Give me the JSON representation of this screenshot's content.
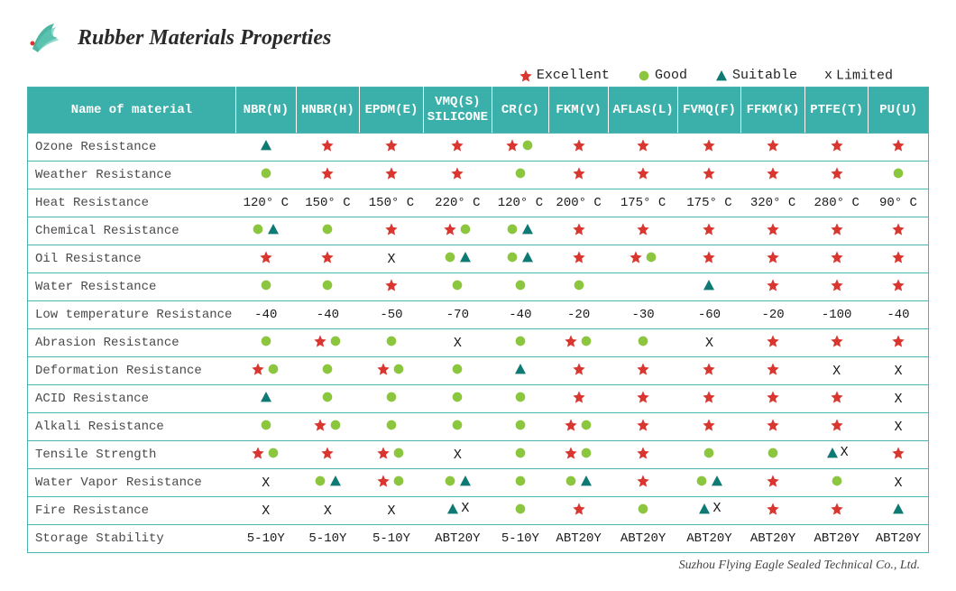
{
  "title": "Rubber Materials Properties",
  "footer": "Suzhou Flying Eagle Sealed Technical Co., Ltd.",
  "colors": {
    "header_bg": "#3bb0aa",
    "header_text": "#ffffff",
    "border": "#4ab5b0",
    "star": "#d9362f",
    "circle": "#8cc63f",
    "triangle": "#0e7a73",
    "logo_leaf": "#2ea890",
    "logo_dot": "#d9362f"
  },
  "legend": [
    {
      "symbol": "star",
      "label": "Excellent"
    },
    {
      "symbol": "circle",
      "label": "Good"
    },
    {
      "symbol": "triangle",
      "label": "Suitable"
    },
    {
      "symbol": "x",
      "label": "Limited"
    }
  ],
  "columns": [
    "Name of material",
    "NBR(N)",
    "HNBR(H)",
    "EPDM(E)",
    "VMQ(S)\nSILICONE",
    "CR(C)",
    "FKM(V)",
    "AFLAS(L)",
    "FVMQ(F)",
    "FFKM(K)",
    "PTFE(T)",
    "PU(U)"
  ],
  "rows": [
    {
      "label": "Ozone Resistance",
      "cells": [
        {
          "s": [
            "triangle"
          ]
        },
        {
          "s": [
            "star"
          ]
        },
        {
          "s": [
            "star"
          ]
        },
        {
          "s": [
            "star"
          ]
        },
        {
          "s": [
            "star",
            "circle"
          ]
        },
        {
          "s": [
            "star"
          ]
        },
        {
          "s": [
            "star"
          ]
        },
        {
          "s": [
            "star"
          ]
        },
        {
          "s": [
            "star"
          ]
        },
        {
          "s": [
            "star"
          ]
        },
        {
          "s": [
            "star"
          ]
        }
      ]
    },
    {
      "label": "Weather Resistance",
      "cells": [
        {
          "s": [
            "circle"
          ]
        },
        {
          "s": [
            "star"
          ]
        },
        {
          "s": [
            "star"
          ]
        },
        {
          "s": [
            "star"
          ]
        },
        {
          "s": [
            "circle"
          ]
        },
        {
          "s": [
            "star"
          ]
        },
        {
          "s": [
            "star"
          ]
        },
        {
          "s": [
            "star"
          ]
        },
        {
          "s": [
            "star"
          ]
        },
        {
          "s": [
            "star"
          ]
        },
        {
          "s": [
            "circle"
          ]
        }
      ]
    },
    {
      "label": "Heat Resistance",
      "cells": [
        {
          "t": "120° C"
        },
        {
          "t": "150° C"
        },
        {
          "t": "150° C"
        },
        {
          "t": "220° C"
        },
        {
          "t": "120° C"
        },
        {
          "t": "200° C"
        },
        {
          "t": "175° C"
        },
        {
          "t": "175° C"
        },
        {
          "t": "320° C"
        },
        {
          "t": "280° C"
        },
        {
          "t": "90° C"
        }
      ]
    },
    {
      "label": "Chemical Resistance",
      "cells": [
        {
          "s": [
            "circle",
            "triangle"
          ]
        },
        {
          "s": [
            "circle"
          ]
        },
        {
          "s": [
            "star"
          ]
        },
        {
          "s": [
            "star",
            "circle"
          ]
        },
        {
          "s": [
            "circle",
            "triangle"
          ]
        },
        {
          "s": [
            "star"
          ]
        },
        {
          "s": [
            "star"
          ]
        },
        {
          "s": [
            "star"
          ]
        },
        {
          "s": [
            "star"
          ]
        },
        {
          "s": [
            "star"
          ]
        },
        {
          "s": [
            "star"
          ]
        }
      ]
    },
    {
      "label": "Oil Resistance",
      "cells": [
        {
          "s": [
            "star"
          ]
        },
        {
          "s": [
            "star"
          ]
        },
        {
          "s": [
            "x"
          ]
        },
        {
          "s": [
            "circle",
            "triangle"
          ]
        },
        {
          "s": [
            "circle",
            "triangle"
          ]
        },
        {
          "s": [
            "star"
          ]
        },
        {
          "s": [
            "star",
            "circle"
          ]
        },
        {
          "s": [
            "star"
          ]
        },
        {
          "s": [
            "star"
          ]
        },
        {
          "s": [
            "star"
          ]
        },
        {
          "s": [
            "star"
          ]
        }
      ]
    },
    {
      "label": "Water Resistance",
      "cells": [
        {
          "s": [
            "circle"
          ]
        },
        {
          "s": [
            "circle"
          ]
        },
        {
          "s": [
            "star"
          ]
        },
        {
          "s": [
            "circle"
          ]
        },
        {
          "s": [
            "circle"
          ]
        },
        {
          "s": [
            "circle"
          ]
        },
        {
          "s": []
        },
        {
          "s": [
            "triangle"
          ]
        },
        {
          "s": [
            "star"
          ]
        },
        {
          "s": [
            "star"
          ]
        },
        {
          "s": [
            "star"
          ]
        }
      ]
    },
    {
      "label": "Low temperature Resistance",
      "cells": [
        {
          "t": "-40"
        },
        {
          "t": "-40"
        },
        {
          "t": "-50"
        },
        {
          "t": "-70"
        },
        {
          "t": "-40"
        },
        {
          "t": "-20"
        },
        {
          "t": "-30"
        },
        {
          "t": "-60"
        },
        {
          "t": "-20"
        },
        {
          "t": "-100"
        },
        {
          "t": "-40"
        }
      ]
    },
    {
      "label": "Abrasion Resistance",
      "cells": [
        {
          "s": [
            "circle"
          ]
        },
        {
          "s": [
            "star",
            "circle"
          ]
        },
        {
          "s": [
            "circle"
          ]
        },
        {
          "s": [
            "x"
          ]
        },
        {
          "s": [
            "circle"
          ]
        },
        {
          "s": [
            "star",
            "circle"
          ]
        },
        {
          "s": [
            "circle"
          ]
        },
        {
          "s": [
            "x"
          ]
        },
        {
          "s": [
            "star"
          ]
        },
        {
          "s": [
            "star"
          ]
        },
        {
          "s": [
            "star"
          ]
        }
      ]
    },
    {
      "label": "Deformation Resistance",
      "cells": [
        {
          "s": [
            "star",
            "circle"
          ]
        },
        {
          "s": [
            "circle"
          ]
        },
        {
          "s": [
            "star",
            "circle"
          ]
        },
        {
          "s": [
            "circle"
          ]
        },
        {
          "s": [
            "triangle"
          ]
        },
        {
          "s": [
            "star"
          ]
        },
        {
          "s": [
            "star"
          ]
        },
        {
          "s": [
            "star"
          ]
        },
        {
          "s": [
            "star"
          ]
        },
        {
          "s": [
            "x"
          ]
        },
        {
          "s": [
            "x"
          ]
        }
      ]
    },
    {
      "label": "ACID Resistance",
      "cells": [
        {
          "s": [
            "triangle"
          ]
        },
        {
          "s": [
            "circle"
          ]
        },
        {
          "s": [
            "circle"
          ]
        },
        {
          "s": [
            "circle"
          ]
        },
        {
          "s": [
            "circle"
          ]
        },
        {
          "s": [
            "star"
          ]
        },
        {
          "s": [
            "star"
          ]
        },
        {
          "s": [
            "star"
          ]
        },
        {
          "s": [
            "star"
          ]
        },
        {
          "s": [
            "star"
          ]
        },
        {
          "s": [
            "x"
          ]
        }
      ]
    },
    {
      "label": "Alkali Resistance",
      "cells": [
        {
          "s": [
            "circle"
          ]
        },
        {
          "s": [
            "star",
            "circle"
          ]
        },
        {
          "s": [
            "circle"
          ]
        },
        {
          "s": [
            "circle"
          ]
        },
        {
          "s": [
            "circle"
          ]
        },
        {
          "s": [
            "star",
            "circle"
          ]
        },
        {
          "s": [
            "star"
          ]
        },
        {
          "s": [
            "star"
          ]
        },
        {
          "s": [
            "star"
          ]
        },
        {
          "s": [
            "star"
          ]
        },
        {
          "s": [
            "x"
          ]
        }
      ]
    },
    {
      "label": "Tensile Strength",
      "cells": [
        {
          "s": [
            "star",
            "circle"
          ]
        },
        {
          "s": [
            "star"
          ]
        },
        {
          "s": [
            "star",
            "circle"
          ]
        },
        {
          "s": [
            "x"
          ]
        },
        {
          "s": [
            "circle"
          ]
        },
        {
          "s": [
            "star",
            "circle"
          ]
        },
        {
          "s": [
            "star"
          ]
        },
        {
          "s": [
            "circle"
          ]
        },
        {
          "s": [
            "circle"
          ]
        },
        {
          "s": [
            "triangle",
            "x"
          ]
        },
        {
          "s": [
            "star"
          ]
        }
      ]
    },
    {
      "label": "Water Vapor Resistance",
      "cells": [
        {
          "s": [
            "x"
          ]
        },
        {
          "s": [
            "circle",
            "triangle"
          ]
        },
        {
          "s": [
            "star",
            "circle"
          ]
        },
        {
          "s": [
            "circle",
            "triangle"
          ]
        },
        {
          "s": [
            "circle"
          ]
        },
        {
          "s": [
            "circle",
            "triangle"
          ]
        },
        {
          "s": [
            "star"
          ]
        },
        {
          "s": [
            "circle",
            "triangle"
          ]
        },
        {
          "s": [
            "star"
          ]
        },
        {
          "s": [
            "circle"
          ]
        },
        {
          "s": [
            "x"
          ]
        }
      ]
    },
    {
      "label": "Fire Resistance",
      "cells": [
        {
          "s": [
            "x"
          ]
        },
        {
          "s": [
            "x"
          ]
        },
        {
          "s": [
            "x"
          ]
        },
        {
          "s": [
            "triangle",
            "x"
          ]
        },
        {
          "s": [
            "circle"
          ]
        },
        {
          "s": [
            "star"
          ]
        },
        {
          "s": [
            "circle"
          ]
        },
        {
          "s": [
            "triangle",
            "x"
          ]
        },
        {
          "s": [
            "star"
          ]
        },
        {
          "s": [
            "star"
          ]
        },
        {
          "s": [
            "triangle"
          ]
        }
      ]
    },
    {
      "label": "Storage Stability",
      "cells": [
        {
          "t": "5-10Y"
        },
        {
          "t": "5-10Y"
        },
        {
          "t": "5-10Y"
        },
        {
          "t": "ABT20Y"
        },
        {
          "t": "5-10Y"
        },
        {
          "t": "ABT20Y"
        },
        {
          "t": "ABT20Y"
        },
        {
          "t": "ABT20Y"
        },
        {
          "t": "ABT20Y"
        },
        {
          "t": "ABT20Y"
        },
        {
          "t": "ABT20Y"
        }
      ]
    }
  ],
  "icon_size": 16
}
